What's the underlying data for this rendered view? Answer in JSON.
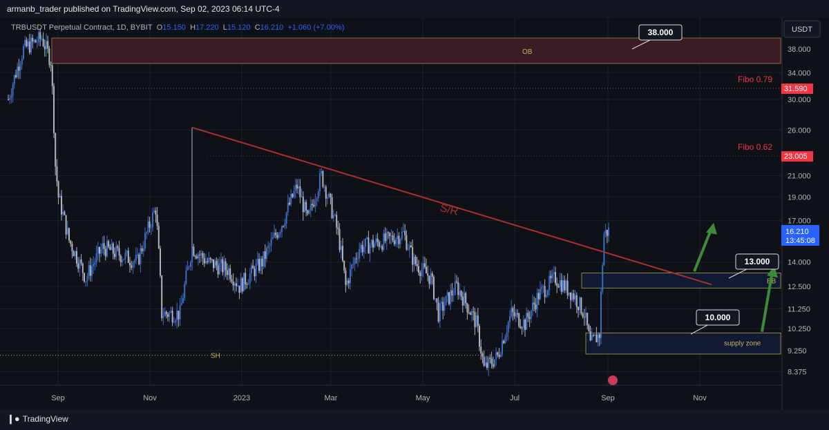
{
  "header": {
    "published": "armanb_trader published on TradingView.com, Sep 02, 2023 06:14 UTC-4"
  },
  "legend": {
    "symbol": "TRBUSDT Perpetual Contract, 1D, BYBIT",
    "o_label": "O",
    "o": "15.150",
    "h_label": "H",
    "h": "17.220",
    "l_label": "L",
    "l": "15.120",
    "c_label": "C",
    "c": "16.210",
    "change": "+1.060 (+7.00%)"
  },
  "footer": {
    "brand": "TradingView"
  },
  "colors": {
    "bg": "#0f1118",
    "up": "#3d6cc4",
    "down": "#b2b5be",
    "fibo": "#f23645",
    "sr": "#a8302f",
    "zone": "#c9b458"
  },
  "chart_data": {
    "type": "candlestick",
    "currency": "USDT",
    "y_ticks": [
      "38.000",
      "34.000",
      "30.000",
      "26.000",
      "21.000",
      "19.000",
      "17.000",
      "14.000",
      "12.500",
      "11.250",
      "10.250",
      "9.250",
      "8.375"
    ],
    "x_ticks": [
      "Sep",
      "Nov",
      "2023",
      "Mar",
      "May",
      "Jul",
      "Sep",
      "Nov"
    ],
    "last_price": "16.210",
    "countdown": "13:45:08",
    "keyframes_day_price": [
      [
        0,
        30
      ],
      [
        10,
        38
      ],
      [
        22,
        40
      ],
      [
        28,
        36
      ],
      [
        31,
        22
      ],
      [
        33,
        19
      ],
      [
        40,
        15.5
      ],
      [
        51,
        13
      ],
      [
        62,
        15
      ],
      [
        85,
        14
      ],
      [
        97,
        18
      ],
      [
        101,
        11
      ],
      [
        113,
        11
      ],
      [
        121,
        15
      ],
      [
        131,
        14
      ],
      [
        145,
        13.5
      ],
      [
        152,
        12.5
      ],
      [
        167,
        14
      ],
      [
        181,
        17
      ],
      [
        190,
        20
      ],
      [
        197,
        17
      ],
      [
        206,
        21
      ],
      [
        217,
        16
      ],
      [
        222,
        12.5
      ],
      [
        231,
        15
      ],
      [
        249,
        15.5
      ],
      [
        260,
        16
      ],
      [
        267,
        14
      ],
      [
        278,
        13
      ],
      [
        283,
        11
      ],
      [
        295,
        12.5
      ],
      [
        308,
        10.5
      ],
      [
        313,
        8.5
      ],
      [
        322,
        9
      ],
      [
        331,
        11
      ],
      [
        340,
        10.5
      ],
      [
        349,
        12
      ],
      [
        360,
        13
      ],
      [
        372,
        12
      ],
      [
        379,
        11
      ],
      [
        383,
        9.5
      ],
      [
        389,
        10
      ],
      [
        392,
        16
      ],
      [
        395,
        16.2
      ]
    ],
    "annotations": {
      "ob_label": "OB",
      "ob_price": "38.000",
      "fibo1_label": "Fibo 0.79",
      "fibo1_price": "31.590",
      "fibo2_label": "Fibo 0.62",
      "fibo2_price": "23.005",
      "sr_label": "S/R",
      "sh_label": "SH",
      "bb_label": "BB",
      "bb_price": "13.000",
      "supply_label": "supply zone",
      "supply_price": "10.000"
    }
  }
}
